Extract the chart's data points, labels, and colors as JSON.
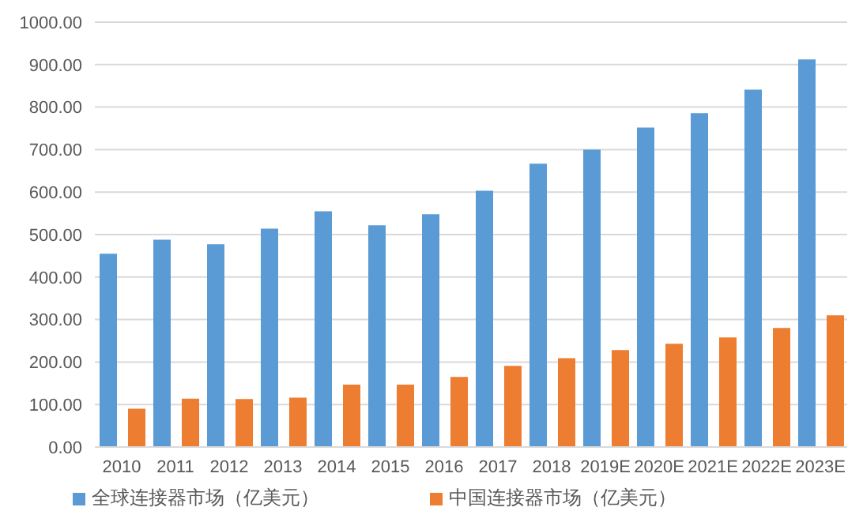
{
  "chart_data": {
    "type": "bar",
    "categories": [
      "2010",
      "2011",
      "2012",
      "2013",
      "2014",
      "2015",
      "2016",
      "2017",
      "2018",
      "2019E",
      "2020E",
      "2021E",
      "2022E",
      "2023E"
    ],
    "series": [
      {
        "name": "全球连接器市场（亿美元）",
        "color": "#5b9bd5",
        "values": [
          455,
          488,
          477,
          514,
          555,
          522,
          548,
          603,
          667,
          700,
          752,
          786,
          841,
          912
        ]
      },
      {
        "name": "中国连接器市场（亿美元）",
        "color": "#ed7d31",
        "values": [
          90,
          114,
          113,
          116,
          147,
          147,
          165,
          191,
          209,
          228,
          243,
          258,
          280,
          310
        ]
      }
    ],
    "ylim": [
      0,
      1000
    ],
    "yticks": [
      {
        "value": 0,
        "label": "0.00"
      },
      {
        "value": 100,
        "label": "100.00"
      },
      {
        "value": 200,
        "label": "200.00"
      },
      {
        "value": 300,
        "label": "300.00"
      },
      {
        "value": 400,
        "label": "400.00"
      },
      {
        "value": 500,
        "label": "500.00"
      },
      {
        "value": 600,
        "label": "600.00"
      },
      {
        "value": 700,
        "label": "700.00"
      },
      {
        "value": 800,
        "label": "800.00"
      },
      {
        "value": 900,
        "label": "900.00"
      },
      {
        "value": 1000,
        "label": "1000.00"
      }
    ],
    "grid": "y",
    "legend": "bottom"
  }
}
